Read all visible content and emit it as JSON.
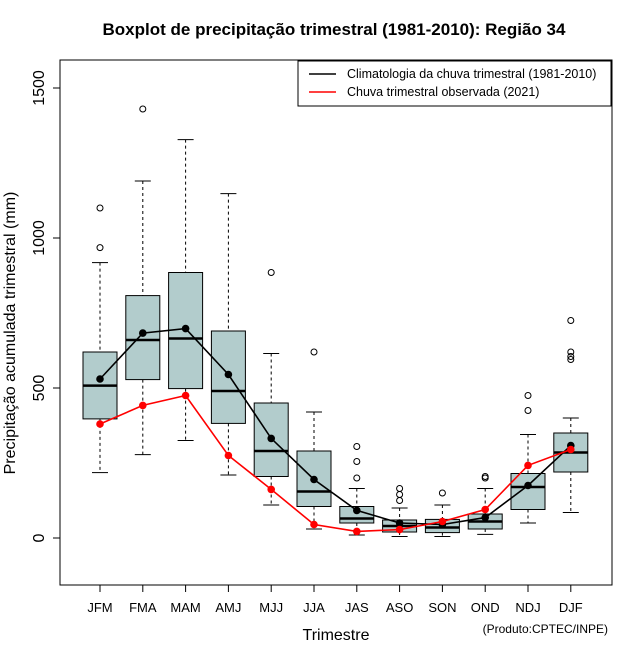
{
  "chart_data": {
    "type": "boxplot",
    "title": "Boxplot de precipitação trimestral (1981-2010): Região 34",
    "xlabel": "Trimestre",
    "ylabel": "Precipitação acumulada trimestral (mm)",
    "ylim": [
      -160,
      1590
    ],
    "yticks": [
      0,
      500,
      1000,
      1500
    ],
    "categories": [
      "JFM",
      "FMA",
      "MAM",
      "AMJ",
      "MJJ",
      "JJA",
      "JAS",
      "ASO",
      "SON",
      "OND",
      "NDJ",
      "DJF"
    ],
    "boxes": [
      {
        "min": 218,
        "q1": 397,
        "median": 508,
        "q3": 620,
        "max": 918,
        "outliers": [
          968,
          1100
        ]
      },
      {
        "min": 278,
        "q1": 528,
        "median": 660,
        "q3": 808,
        "max": 1190,
        "outliers": [
          1430
        ]
      },
      {
        "min": 325,
        "q1": 498,
        "median": 665,
        "q3": 885,
        "max": 1328,
        "outliers": []
      },
      {
        "min": 210,
        "q1": 382,
        "median": 490,
        "q3": 690,
        "max": 1148,
        "outliers": []
      },
      {
        "min": 110,
        "q1": 205,
        "median": 290,
        "q3": 450,
        "max": 615,
        "outliers": [
          885
        ]
      },
      {
        "min": 30,
        "q1": 105,
        "median": 155,
        "q3": 290,
        "max": 420,
        "outliers": [
          620
        ]
      },
      {
        "min": 10,
        "q1": 50,
        "median": 65,
        "q3": 105,
        "max": 165,
        "outliers": [
          200,
          255,
          305
        ]
      },
      {
        "min": 5,
        "q1": 20,
        "median": 40,
        "q3": 60,
        "max": 100,
        "outliers": [
          125,
          145,
          165
        ]
      },
      {
        "min": 5,
        "q1": 18,
        "median": 35,
        "q3": 62,
        "max": 110,
        "outliers": [
          150
        ]
      },
      {
        "min": 12,
        "q1": 30,
        "median": 55,
        "q3": 80,
        "max": 165,
        "outliers": [
          200,
          205
        ]
      },
      {
        "min": 50,
        "q1": 95,
        "median": 170,
        "q3": 215,
        "max": 345,
        "outliers": [
          425,
          475
        ]
      },
      {
        "min": 85,
        "q1": 220,
        "median": 285,
        "q3": 350,
        "max": 400,
        "outliers": [
          595,
          605,
          620,
          725
        ]
      }
    ],
    "series": [
      {
        "name": "Climatologia da chuva trimestral (1981-2010)",
        "color": "#000000",
        "values": [
          530,
          683,
          698,
          545,
          332,
          195,
          92,
          50,
          45,
          68,
          175,
          308
        ]
      },
      {
        "name": "Chuva trimestral observada (2021)",
        "color": "#ff0000",
        "values": [
          380,
          442,
          475,
          275,
          162,
          45,
          22,
          28,
          55,
          95,
          242,
          295
        ]
      }
    ],
    "box_fill": "#b2cccc",
    "legend_position": "top-right",
    "credit": "(Produto:CPTEC/INPE)"
  }
}
